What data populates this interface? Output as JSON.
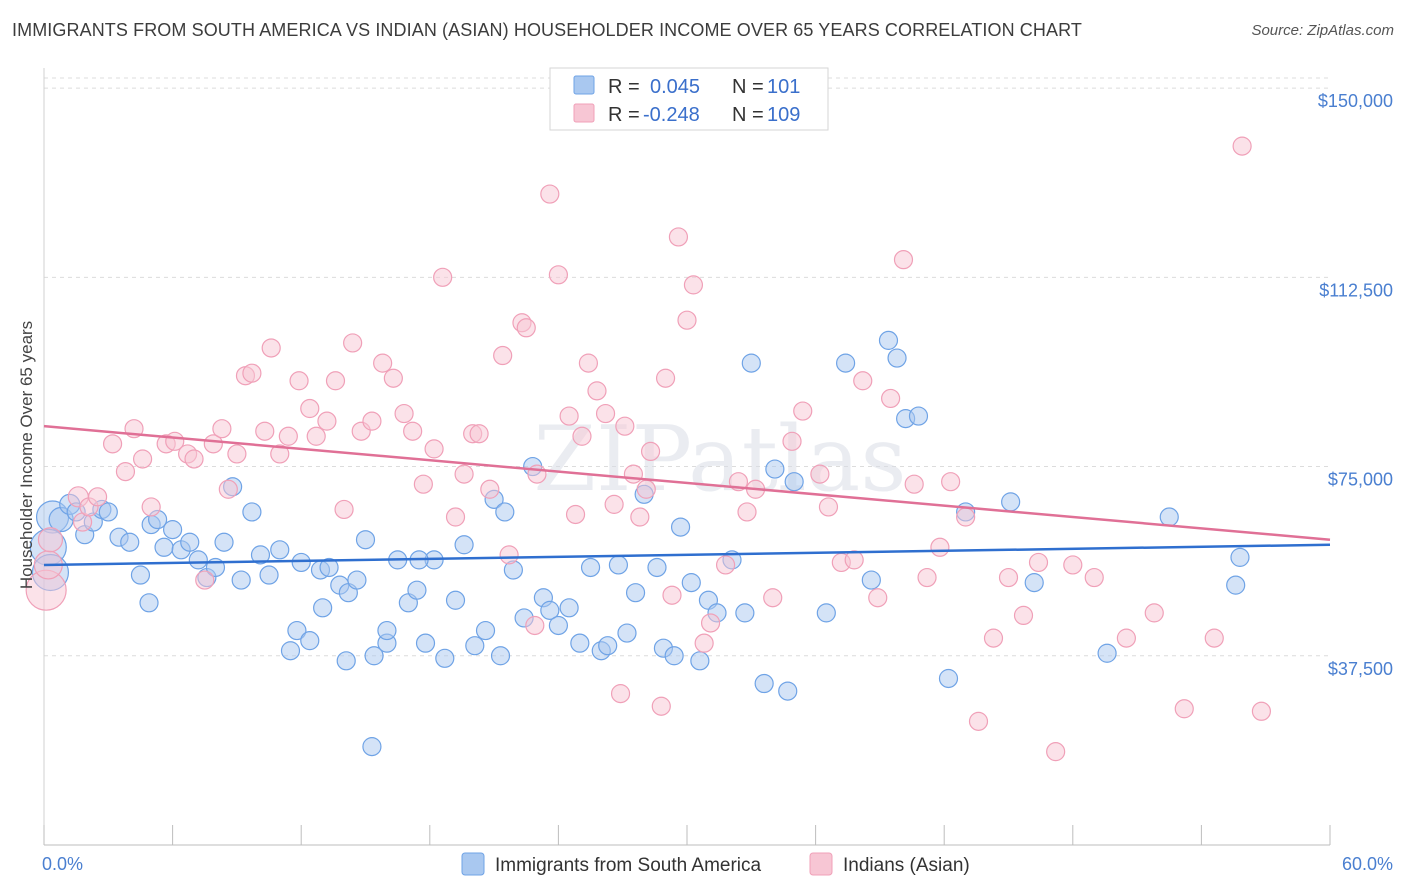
{
  "title": "IMMIGRANTS FROM SOUTH AMERICA VS INDIAN (ASIAN) HOUSEHOLDER INCOME OVER 65 YEARS CORRELATION CHART",
  "source": "Source: ZipAtlas.com",
  "watermark": "ZIPatlas",
  "chart_data": {
    "type": "scatter",
    "title": "IMMIGRANTS FROM SOUTH AMERICA VS INDIAN (ASIAN) HOUSEHOLDER INCOME OVER 65 YEARS CORRELATION CHART",
    "xlabel": "",
    "ylabel": "Householder Income Over 65 years",
    "xlim": [
      0,
      60
    ],
    "ylim": [
      0,
      152000
    ],
    "x_tick_labels": [
      "0.0%",
      "60.0%"
    ],
    "y_ticks": [
      37500,
      75000,
      112500,
      150000
    ],
    "y_tick_labels": [
      "$37,500",
      "$75,000",
      "$112,500",
      "$150,000"
    ],
    "grid": true,
    "legend": {
      "placement": "top-center",
      "entries": [
        {
          "r_label": "R =",
          "r": "0.045",
          "n_label": "N =",
          "n": "101",
          "color": "#6fa3e6"
        },
        {
          "r_label": "R =",
          "r": "-0.248",
          "n_label": "N =",
          "n": "109",
          "color": "#f0a0b8"
        }
      ]
    },
    "series": [
      {
        "name": "Immigrants from South America",
        "color": "#6fa3e6",
        "fill": "#a9c8f0",
        "trend": {
          "x": [
            0,
            60
          ],
          "y": [
            55500,
            59500
          ],
          "color": "#2f6fcf"
        },
        "points": [
          [
            0.4,
            65000,
            16
          ],
          [
            0.8,
            64500,
            12
          ],
          [
            1.2,
            67500,
            10
          ],
          [
            1.5,
            66000,
            9
          ],
          [
            1.9,
            61500,
            9
          ],
          [
            2.3,
            64000,
            9
          ],
          [
            2.7,
            66500,
            9
          ],
          [
            3.0,
            66000,
            9
          ],
          [
            0.2,
            59000,
            18
          ],
          [
            0.3,
            54000,
            18
          ],
          [
            3.5,
            61000,
            9
          ],
          [
            4.0,
            60000,
            9
          ],
          [
            4.5,
            53500,
            9
          ],
          [
            5.0,
            63500,
            9
          ],
          [
            5.3,
            64500,
            9
          ],
          [
            5.6,
            59000,
            9
          ],
          [
            6.0,
            62500,
            9
          ],
          [
            6.4,
            58500,
            9
          ],
          [
            6.8,
            60000,
            9
          ],
          [
            7.2,
            56500,
            9
          ],
          [
            7.6,
            53000,
            9
          ],
          [
            8.0,
            55000,
            9
          ],
          [
            8.4,
            60000,
            9
          ],
          [
            8.8,
            71000,
            9
          ],
          [
            9.2,
            52500,
            9
          ],
          [
            9.7,
            66000,
            9
          ],
          [
            10.1,
            57500,
            9
          ],
          [
            10.5,
            53500,
            9
          ],
          [
            11.0,
            58500,
            9
          ],
          [
            11.5,
            38500,
            9
          ],
          [
            11.8,
            42500,
            9
          ],
          [
            12.4,
            40500,
            9
          ],
          [
            12.9,
            54500,
            9
          ],
          [
            13.3,
            55000,
            9
          ],
          [
            13.8,
            51500,
            9
          ],
          [
            14.2,
            50000,
            9
          ],
          [
            14.6,
            52500,
            9
          ],
          [
            15.0,
            60500,
            9
          ],
          [
            15.4,
            37500,
            9
          ],
          [
            16.0,
            40000,
            9
          ],
          [
            16.5,
            56500,
            9
          ],
          [
            17.0,
            48000,
            9
          ],
          [
            17.4,
            50500,
            9
          ],
          [
            17.8,
            40000,
            9
          ],
          [
            18.2,
            56500,
            9
          ],
          [
            18.7,
            37000,
            9
          ],
          [
            19.2,
            48500,
            9
          ],
          [
            19.6,
            59500,
            9
          ],
          [
            20.1,
            39500,
            9
          ],
          [
            20.6,
            42500,
            9
          ],
          [
            21.0,
            68500,
            9
          ],
          [
            21.5,
            66000,
            9
          ],
          [
            21.9,
            54500,
            9
          ],
          [
            22.4,
            45000,
            9
          ],
          [
            22.8,
            75000,
            9
          ],
          [
            23.3,
            49000,
            9
          ],
          [
            23.6,
            46500,
            9
          ],
          [
            24.0,
            43500,
            9
          ],
          [
            24.5,
            47000,
            9
          ],
          [
            25.0,
            40000,
            9
          ],
          [
            25.5,
            55000,
            9
          ],
          [
            26.0,
            38500,
            9
          ],
          [
            26.3,
            39500,
            9
          ],
          [
            26.8,
            55500,
            9
          ],
          [
            27.2,
            42000,
            9
          ],
          [
            27.6,
            50000,
            9
          ],
          [
            28.0,
            69500,
            9
          ],
          [
            28.6,
            55000,
            9
          ],
          [
            28.9,
            39000,
            9
          ],
          [
            29.4,
            37500,
            9
          ],
          [
            29.7,
            63000,
            9
          ],
          [
            30.2,
            52000,
            9
          ],
          [
            30.6,
            36500,
            9
          ],
          [
            31.0,
            48500,
            9
          ],
          [
            31.4,
            46000,
            9
          ],
          [
            32.1,
            56500,
            9
          ],
          [
            32.7,
            46000,
            9
          ],
          [
            33.0,
            95500,
            9
          ],
          [
            33.6,
            32000,
            9
          ],
          [
            34.1,
            74500,
            9
          ],
          [
            34.7,
            30500,
            9
          ],
          [
            35.0,
            72000,
            9
          ],
          [
            36.5,
            46000,
            9
          ],
          [
            37.4,
            95500,
            9
          ],
          [
            38.6,
            52500,
            9
          ],
          [
            39.4,
            100000,
            9
          ],
          [
            39.8,
            96500,
            9
          ],
          [
            40.2,
            84500,
            9
          ],
          [
            40.8,
            85000,
            9
          ],
          [
            42.2,
            33000,
            9
          ],
          [
            43.0,
            66000,
            9
          ],
          [
            45.1,
            68000,
            9
          ],
          [
            46.2,
            52000,
            9
          ],
          [
            49.6,
            38000,
            9
          ],
          [
            52.5,
            65000,
            9
          ],
          [
            55.6,
            51500,
            9
          ],
          [
            55.8,
            57000,
            9
          ],
          [
            15.3,
            19500,
            9
          ],
          [
            12.0,
            56000,
            9
          ],
          [
            13.0,
            47000,
            9
          ],
          [
            16.0,
            42500,
            9
          ],
          [
            21.3,
            37500,
            9
          ],
          [
            14.1,
            36500,
            9
          ],
          [
            17.5,
            56500,
            9
          ],
          [
            4.9,
            48000,
            9
          ]
        ]
      },
      {
        "name": "Indians (Asian)",
        "color": "#f0a0b8",
        "fill": "#f7c6d4",
        "trend": {
          "x": [
            0,
            60
          ],
          "y": [
            83000,
            60500
          ],
          "color": "#e07096"
        },
        "points": [
          [
            0.1,
            50500,
            20
          ],
          [
            0.2,
            55500,
            14
          ],
          [
            0.3,
            60500,
            12
          ],
          [
            1.6,
            69000,
            10
          ],
          [
            1.8,
            64000,
            9
          ],
          [
            2.1,
            67000,
            9
          ],
          [
            2.5,
            69000,
            9
          ],
          [
            3.2,
            79500,
            9
          ],
          [
            3.8,
            74000,
            9
          ],
          [
            4.2,
            82500,
            9
          ],
          [
            4.6,
            76500,
            9
          ],
          [
            5.0,
            67000,
            9
          ],
          [
            5.7,
            79500,
            9
          ],
          [
            6.1,
            80000,
            9
          ],
          [
            6.7,
            77500,
            9
          ],
          [
            7.0,
            76500,
            9
          ],
          [
            7.5,
            52500,
            9
          ],
          [
            7.9,
            79500,
            9
          ],
          [
            8.3,
            82500,
            9
          ],
          [
            8.6,
            70500,
            9
          ],
          [
            9.0,
            77500,
            9
          ],
          [
            9.4,
            93000,
            9
          ],
          [
            9.7,
            93500,
            9
          ],
          [
            10.3,
            82000,
            9
          ],
          [
            10.6,
            98500,
            9
          ],
          [
            11.0,
            77500,
            9
          ],
          [
            11.4,
            81000,
            9
          ],
          [
            11.9,
            92000,
            9
          ],
          [
            12.4,
            86500,
            9
          ],
          [
            12.7,
            81000,
            9
          ],
          [
            13.2,
            84000,
            9
          ],
          [
            13.6,
            92000,
            9
          ],
          [
            14.0,
            66500,
            9
          ],
          [
            14.4,
            99500,
            9
          ],
          [
            14.8,
            82000,
            9
          ],
          [
            15.3,
            84000,
            9
          ],
          [
            15.8,
            95500,
            9
          ],
          [
            16.3,
            92500,
            9
          ],
          [
            16.8,
            85500,
            9
          ],
          [
            17.2,
            82000,
            9
          ],
          [
            17.7,
            71500,
            9
          ],
          [
            18.2,
            78500,
            9
          ],
          [
            18.6,
            112500,
            9
          ],
          [
            19.2,
            65000,
            9
          ],
          [
            19.6,
            73500,
            9
          ],
          [
            20.0,
            81500,
            9
          ],
          [
            20.3,
            81500,
            9
          ],
          [
            20.8,
            70500,
            9
          ],
          [
            21.4,
            97000,
            9
          ],
          [
            21.7,
            57500,
            9
          ],
          [
            22.3,
            103500,
            9
          ],
          [
            22.5,
            102500,
            9
          ],
          [
            23.0,
            73500,
            9
          ],
          [
            22.9,
            43500,
            9
          ],
          [
            23.6,
            129000,
            9
          ],
          [
            24.0,
            113000,
            9
          ],
          [
            24.5,
            85000,
            9
          ],
          [
            24.8,
            65500,
            9
          ],
          [
            25.1,
            81000,
            9
          ],
          [
            25.4,
            95500,
            9
          ],
          [
            25.8,
            90000,
            9
          ],
          [
            26.2,
            85500,
            9
          ],
          [
            26.6,
            67500,
            9
          ],
          [
            26.9,
            30000,
            9
          ],
          [
            27.1,
            83000,
            9
          ],
          [
            27.5,
            73500,
            9
          ],
          [
            27.8,
            65000,
            9
          ],
          [
            28.3,
            78000,
            9
          ],
          [
            28.8,
            27500,
            9
          ],
          [
            29.0,
            92500,
            9
          ],
          [
            29.3,
            49500,
            9
          ],
          [
            29.6,
            120500,
            9
          ],
          [
            30.0,
            104000,
            9
          ],
          [
            30.3,
            111000,
            9
          ],
          [
            30.8,
            40000,
            9
          ],
          [
            31.1,
            44000,
            9
          ],
          [
            31.8,
            55500,
            9
          ],
          [
            32.4,
            72000,
            9
          ],
          [
            32.8,
            66000,
            9
          ],
          [
            33.2,
            70500,
            9
          ],
          [
            34.0,
            49000,
            9
          ],
          [
            34.9,
            80000,
            9
          ],
          [
            35.4,
            86000,
            9
          ],
          [
            36.2,
            73500,
            9
          ],
          [
            36.6,
            67000,
            9
          ],
          [
            37.2,
            56000,
            9
          ],
          [
            37.8,
            56500,
            9
          ],
          [
            38.2,
            92000,
            9
          ],
          [
            38.9,
            49000,
            9
          ],
          [
            39.5,
            88500,
            9
          ],
          [
            40.1,
            116000,
            9
          ],
          [
            40.6,
            71500,
            9
          ],
          [
            41.2,
            53000,
            9
          ],
          [
            41.8,
            59000,
            9
          ],
          [
            42.3,
            72000,
            9
          ],
          [
            43.0,
            65000,
            9
          ],
          [
            43.6,
            24500,
            9
          ],
          [
            44.3,
            41000,
            9
          ],
          [
            45.0,
            53000,
            9
          ],
          [
            45.7,
            45500,
            9
          ],
          [
            46.4,
            56000,
            9
          ],
          [
            47.2,
            18500,
            9
          ],
          [
            48.0,
            55500,
            9
          ],
          [
            49.0,
            53000,
            9
          ],
          [
            50.5,
            41000,
            9
          ],
          [
            51.8,
            46000,
            9
          ],
          [
            53.2,
            27000,
            9
          ],
          [
            54.6,
            41000,
            9
          ],
          [
            55.9,
            138500,
            9
          ],
          [
            56.8,
            26500,
            9
          ],
          [
            28.1,
            70500,
            9
          ]
        ]
      }
    ]
  },
  "legend_bottom": [
    {
      "label": "Immigrants from South America",
      "color": "#a9c8f0",
      "stroke": "#6fa3e6"
    },
    {
      "label": "Indians (Asian)",
      "color": "#f7c6d4",
      "stroke": "#f0a0b8"
    }
  ]
}
